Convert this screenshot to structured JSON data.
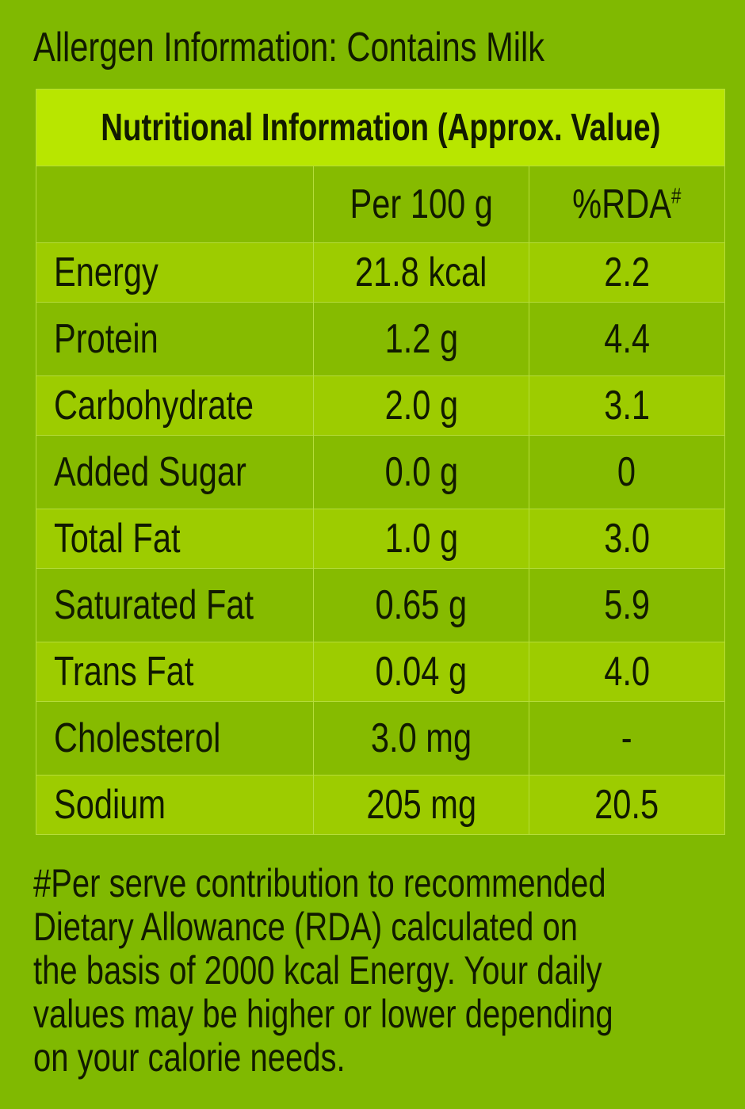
{
  "allergen": "Allergen Information: Contains Milk",
  "table": {
    "title": "Nutritional Information (Approx. Value)",
    "header": [
      "Per 100 g",
      "%RDA"
    ],
    "header_mark": "#",
    "rows": [
      [
        "Energy",
        "21.8 kcal",
        "2.2"
      ],
      [
        "Protein",
        "1.2 g",
        "4.4"
      ],
      [
        "Carbohydrate",
        "2.0 g",
        "3.1"
      ],
      [
        "Added Sugar",
        "0.0 g",
        "0"
      ],
      [
        "Total Fat",
        "1.0 g",
        "3.0"
      ],
      [
        "Saturated Fat",
        "0.65 g",
        "5.9"
      ],
      [
        "Trans Fat",
        "0.04 g",
        "4.0"
      ],
      [
        "Cholesterol",
        "3.0 mg",
        "-"
      ],
      [
        "Sodium",
        "205 mg",
        "20.5"
      ]
    ]
  },
  "footnote": [
    "#Per serve contribution to recommended",
    "Dietary Allowance (RDA) calculated on",
    "the basis of 2000 kcal Energy. Your daily",
    "values may be higher or lower depending",
    "on your calorie needs."
  ]
}
